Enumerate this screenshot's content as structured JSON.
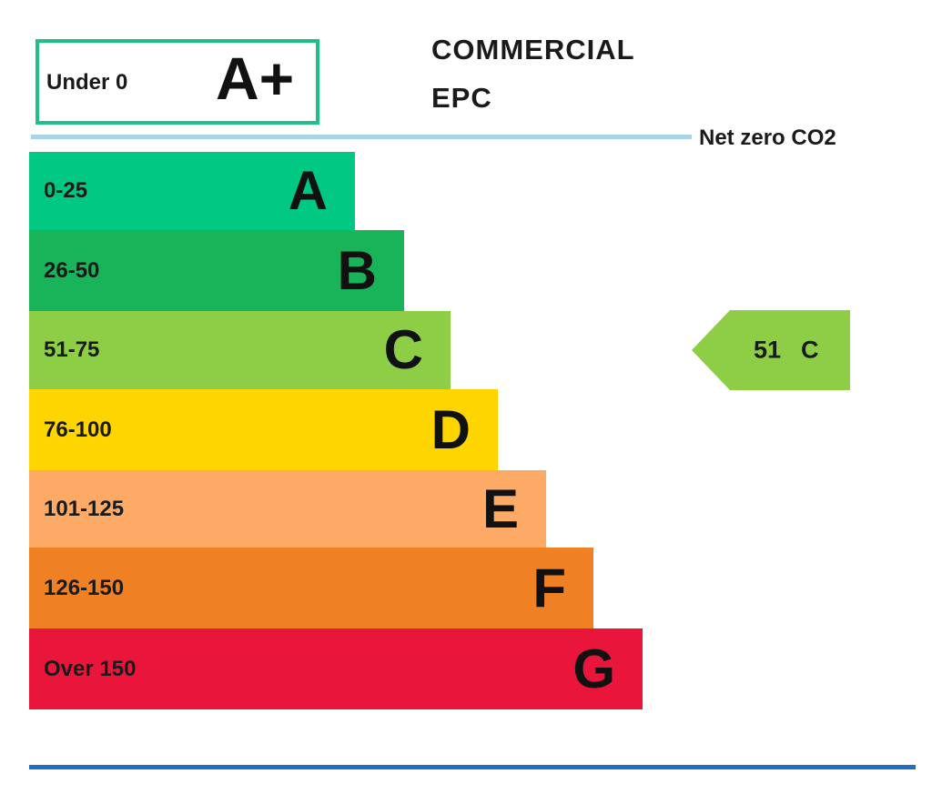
{
  "heading": {
    "line1": "COMMERCIAL",
    "line2": "EPC"
  },
  "net_zero": {
    "label": "Net zero CO2",
    "line_color": "#a9d4e8"
  },
  "top_band": {
    "range": "Under 0",
    "letter": "A+",
    "border_color": "#1fbf86"
  },
  "chart_data": {
    "type": "bar",
    "categories": [
      "A",
      "B",
      "C",
      "D",
      "E",
      "F",
      "G"
    ],
    "ranges": [
      "0-25",
      "26-50",
      "51-75",
      "76-100",
      "101-125",
      "126-150",
      "Over 150"
    ],
    "colors": [
      "#00c781",
      "#19b459",
      "#8dce46",
      "#ffd500",
      "#fcaa65",
      "#ef8023",
      "#e9153b"
    ],
    "current_rating": {
      "score": "51",
      "letter": "C",
      "color": "#8dce46"
    }
  },
  "footer": {
    "line_color": "#1e6fc2"
  }
}
